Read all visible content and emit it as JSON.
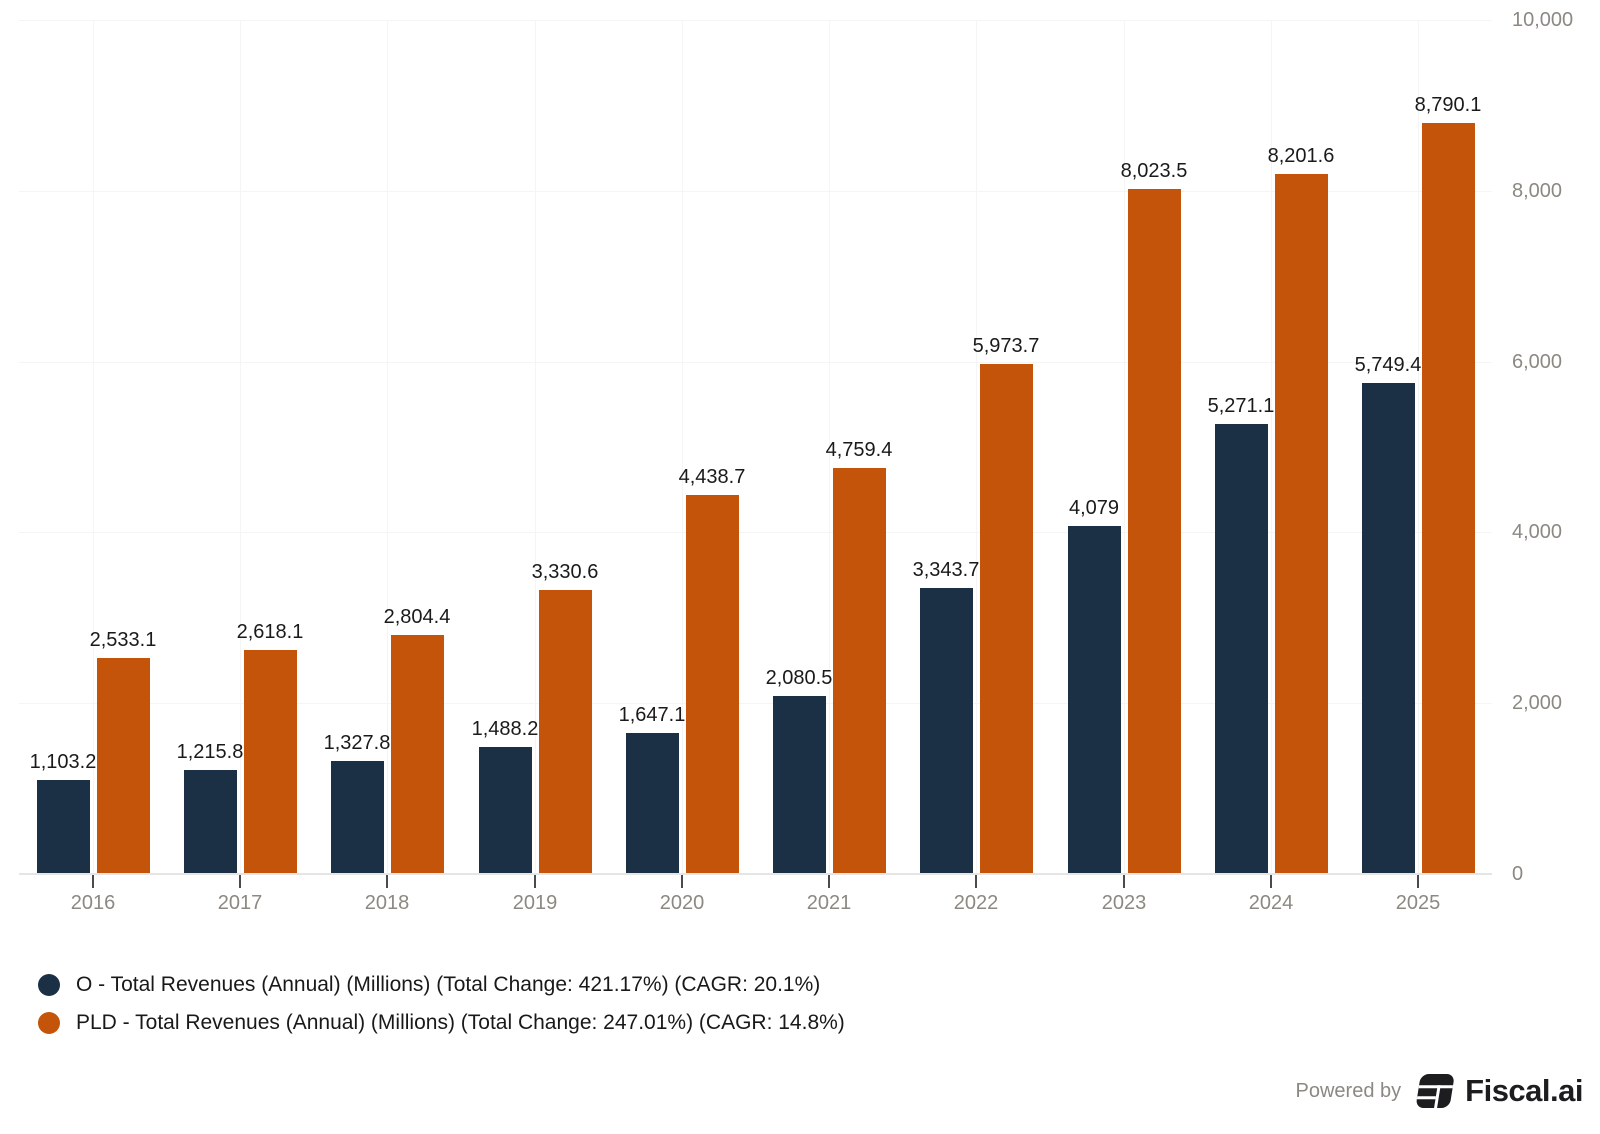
{
  "chart_data": {
    "type": "bar",
    "title": "",
    "categories": [
      "2016",
      "2017",
      "2018",
      "2019",
      "2020",
      "2021",
      "2022",
      "2023",
      "2024",
      "2025"
    ],
    "series": [
      {
        "id": "O",
        "name": "O - Total Revenues (Annual) (Millions) (Total Change: 421.17%) (CAGR: 20.1%)",
        "color": "#1C3045",
        "values": [
          1103.2,
          1215.8,
          1327.8,
          1488.2,
          1647.1,
          2080.5,
          3343.7,
          4079,
          5271.1,
          5749.4
        ],
        "labels": [
          "1,103.2",
          "1,215.8",
          "1,327.8",
          "1,488.2",
          "1,647.1",
          "2,080.5",
          "3,343.7",
          "4,079",
          "5,271.1",
          "5,749.4"
        ]
      },
      {
        "id": "PLD",
        "name": "PLD - Total Revenues (Annual) (Millions) (Total Change: 247.01%) (CAGR: 14.8%)",
        "color": "#C4540A",
        "values": [
          2533.1,
          2618.1,
          2804.4,
          3330.6,
          4438.7,
          4759.4,
          5973.7,
          8023.5,
          8201.6,
          8790.1
        ],
        "labels": [
          "2,533.1",
          "2,618.1",
          "2,804.4",
          "3,330.6",
          "4,438.7",
          "4,759.4",
          "5,973.7",
          "8,023.5",
          "8,201.6",
          "8,790.1"
        ]
      }
    ],
    "xlabel": "",
    "ylabel": "",
    "ylim": [
      0,
      10000
    ],
    "y_ticks": [
      {
        "value": 0,
        "label": "0"
      },
      {
        "value": 2000,
        "label": "2,000"
      },
      {
        "value": 4000,
        "label": "4,000"
      },
      {
        "value": 6000,
        "label": "6,000"
      },
      {
        "value": 8000,
        "label": "8,000"
      },
      {
        "value": 10000,
        "label": "10,000"
      }
    ],
    "y_axis_side": "right",
    "grid": true,
    "legend_position": "bottom-left"
  },
  "footer": {
    "powered_by": "Powered by",
    "brand": "Fiscal.ai",
    "logo_icon": "fiscal-table-logo"
  },
  "colors": {
    "series_o": "#1C3045",
    "series_pld": "#C4540A",
    "gridline": "#f5f5f5",
    "axis_line": "#e5e5e5",
    "tick_mark": "#4a4a4a",
    "axis_text": "#8c8882",
    "value_label_text": "#1a1a1a",
    "brand_text": "#1d1d20"
  }
}
